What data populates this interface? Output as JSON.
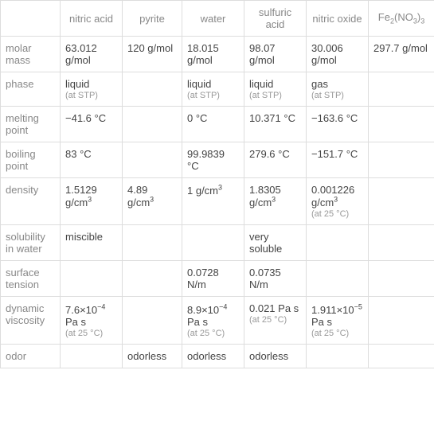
{
  "columns": [
    {
      "label": "nitric acid"
    },
    {
      "label": "pyrite"
    },
    {
      "label": "water"
    },
    {
      "label": "sulfuric acid"
    },
    {
      "label": "nitric oxide"
    },
    {
      "label_html": "Fe<sub>2</sub>(NO<sub>3</sub>)<sub>3</sub>"
    }
  ],
  "rows": [
    {
      "header": "molar mass",
      "cells": [
        {
          "main": "63.012 g/mol"
        },
        {
          "main": "120 g/mol"
        },
        {
          "main": "18.015 g/mol"
        },
        {
          "main": "98.07 g/mol"
        },
        {
          "main": "30.006 g/mol"
        },
        {
          "main": "297.7 g/mol"
        }
      ]
    },
    {
      "header": "phase",
      "cells": [
        {
          "main": "liquid",
          "sub": "(at STP)"
        },
        {
          "main": ""
        },
        {
          "main": "liquid",
          "sub": "(at STP)"
        },
        {
          "main": "liquid",
          "sub": "(at STP)"
        },
        {
          "main": "gas",
          "sub": "(at STP)"
        },
        {
          "main": ""
        }
      ]
    },
    {
      "header": "melting point",
      "cells": [
        {
          "main": "−41.6 °C"
        },
        {
          "main": ""
        },
        {
          "main": "0 °C"
        },
        {
          "main": "10.371 °C"
        },
        {
          "main": "−163.6 °C"
        },
        {
          "main": ""
        }
      ]
    },
    {
      "header": "boiling point",
      "cells": [
        {
          "main": "83 °C"
        },
        {
          "main": ""
        },
        {
          "main": "99.9839 °C"
        },
        {
          "main": "279.6 °C"
        },
        {
          "main": "−151.7 °C"
        },
        {
          "main": ""
        }
      ]
    },
    {
      "header": "density",
      "cells": [
        {
          "main_html": "1.5129 g/cm<sup>3</sup>"
        },
        {
          "main_html": "4.89 g/cm<sup>3</sup>"
        },
        {
          "main_html": "1 g/cm<sup>3</sup>"
        },
        {
          "main_html": "1.8305 g/cm<sup>3</sup>"
        },
        {
          "main_html": "0.001226 g/cm<sup>3</sup>",
          "sub": "(at 25 °C)"
        },
        {
          "main": ""
        }
      ]
    },
    {
      "header": "solubility in water",
      "cells": [
        {
          "main": "miscible"
        },
        {
          "main": ""
        },
        {
          "main": ""
        },
        {
          "main": "very soluble"
        },
        {
          "main": ""
        },
        {
          "main": ""
        }
      ]
    },
    {
      "header": "surface tension",
      "cells": [
        {
          "main": ""
        },
        {
          "main": ""
        },
        {
          "main": "0.0728 N/m"
        },
        {
          "main": "0.0735 N/m"
        },
        {
          "main": ""
        },
        {
          "main": ""
        }
      ]
    },
    {
      "header": "dynamic viscosity",
      "cells": [
        {
          "main_html": "7.6×10<sup>−4</sup> Pa s",
          "sub": "(at 25 °C)"
        },
        {
          "main": ""
        },
        {
          "main_html": "8.9×10<sup>−4</sup> Pa s",
          "sub": "(at 25 °C)"
        },
        {
          "main": "0.021 Pa s",
          "sub": "(at 25 °C)"
        },
        {
          "main_html": "1.911×10<sup>−5</sup> Pa s",
          "sub": "(at 25 °C)"
        },
        {
          "main": ""
        }
      ]
    },
    {
      "header": "odor",
      "cells": [
        {
          "main": ""
        },
        {
          "main": "odorless"
        },
        {
          "main": "odorless"
        },
        {
          "main": "odorless"
        },
        {
          "main": ""
        },
        {
          "main": ""
        }
      ]
    }
  ],
  "style": {
    "border_color": "#ddd",
    "header_color": "#888",
    "text_color": "#444",
    "sub_color": "#999",
    "background": "#ffffff",
    "font_size_main": 13,
    "font_size_sub": 11
  }
}
